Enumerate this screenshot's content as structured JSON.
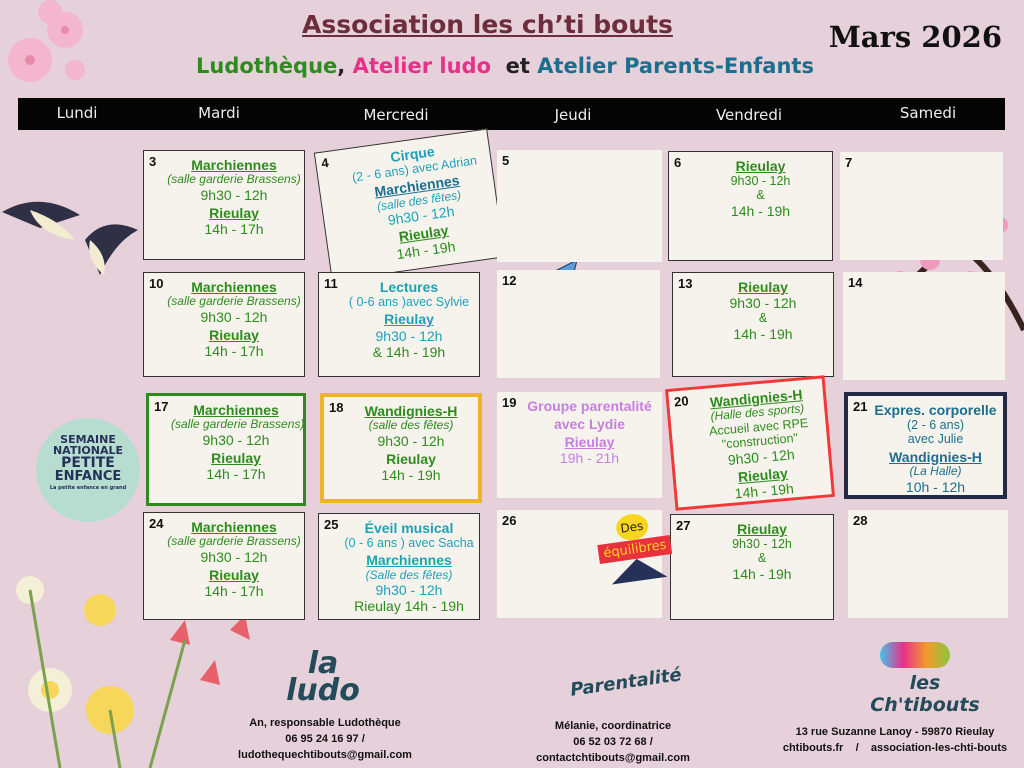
{
  "header": {
    "title": "Association les ch’ti bouts",
    "subtitle": [
      {
        "text": "Ludothèque",
        "color": "#2e8b1e"
      },
      {
        "text": ", ",
        "color": "#222"
      },
      {
        "text": "Atelier ludo",
        "color": "#e8308a"
      },
      {
        "text": "  et ",
        "color": "#222"
      },
      {
        "text": "Atelier Parents-Enfants",
        "color": "#1a6f8f"
      }
    ],
    "month": "Mars 2026"
  },
  "days": [
    "Lundi",
    "Mardi",
    "Mercredi",
    "Jeudi",
    "Vendredi",
    "Samedi"
  ],
  "colors": {
    "green": "#2e8b1e",
    "cyan": "#1ea0ba",
    "teal": "#1a6f8f",
    "violet": "#c77ee0",
    "background": "#e6d0d9"
  },
  "cells": [
    {
      "day": "3",
      "lines": [
        {
          "t": "Marchiennes",
          "c": "place",
          "col": "green"
        },
        {
          "t": "(salle garderie Brassens)",
          "c": "sub",
          "col": "green"
        },
        {
          "t": "9h30 - 12h",
          "c": "time",
          "col": "green"
        },
        {
          "t": "Rieulay",
          "c": "place",
          "col": "green"
        },
        {
          "t": "14h - 17h",
          "c": "time",
          "col": "green"
        }
      ]
    },
    {
      "day": "4",
      "lines": [
        {
          "t": "Cirque",
          "c": "act",
          "col": "cyan"
        },
        {
          "t": "(2 - 6 ans) avec Adrian",
          "c": "small",
          "col": "cyan"
        },
        {
          "t": "Marchiennes",
          "c": "place",
          "col": "teal"
        },
        {
          "t": "(salle des fêtes)",
          "c": "sub",
          "col": "cyan"
        },
        {
          "t": "9h30 - 12h",
          "c": "time",
          "col": "cyan"
        },
        {
          "t": "Rieulay",
          "c": "place",
          "col": "green"
        },
        {
          "t": "14h - 19h",
          "c": "time",
          "col": "green"
        }
      ]
    },
    {
      "day": "5",
      "lines": []
    },
    {
      "day": "6",
      "lines": [
        {
          "t": "Rieulay",
          "c": "place",
          "col": "green"
        },
        {
          "t": "9h30 - 12h",
          "c": "small",
          "col": "green"
        },
        {
          "t": "&",
          "c": "small",
          "col": "green"
        },
        {
          "t": "14h - 19h",
          "c": "time",
          "col": "green"
        }
      ]
    },
    {
      "day": "7",
      "lines": []
    },
    {
      "day": "10",
      "lines": [
        {
          "t": "Marchiennes",
          "c": "place",
          "col": "green"
        },
        {
          "t": "(salle garderie Brassens)",
          "c": "sub",
          "col": "green"
        },
        {
          "t": "9h30 - 12h",
          "c": "time",
          "col": "green"
        },
        {
          "t": "Rieulay",
          "c": "place",
          "col": "green"
        },
        {
          "t": "14h - 17h",
          "c": "time",
          "col": "green"
        }
      ]
    },
    {
      "day": "11",
      "lines": [
        {
          "t": "Lectures",
          "c": "act",
          "col": "cyan"
        },
        {
          "t": "( 0-6 ans )avec Sylvie",
          "c": "small",
          "col": "cyan"
        },
        {
          "t": "Rieulay",
          "c": "place",
          "col": "cyan"
        },
        {
          "t": "9h30 - 12h",
          "c": "time",
          "col": "cyan"
        },
        {
          "t": "&  14h - 19h",
          "c": "time",
          "col": "green"
        }
      ]
    },
    {
      "day": "12",
      "lines": []
    },
    {
      "day": "13",
      "lines": [
        {
          "t": "Rieulay",
          "c": "place",
          "col": "green"
        },
        {
          "t": "9h30 - 12h",
          "c": "time",
          "col": "green"
        },
        {
          "t": "&",
          "c": "small",
          "col": "green"
        },
        {
          "t": "14h - 19h",
          "c": "time",
          "col": "green"
        }
      ]
    },
    {
      "day": "14",
      "lines": []
    },
    {
      "day": "17",
      "lines": [
        {
          "t": "Marchiennes",
          "c": "place",
          "col": "green"
        },
        {
          "t": "(salle garderie Brassens)",
          "c": "sub",
          "col": "green"
        },
        {
          "t": "9h30 - 12h",
          "c": "time",
          "col": "green"
        },
        {
          "t": "Rieulay",
          "c": "place",
          "col": "green"
        },
        {
          "t": "14h - 17h",
          "c": "time",
          "col": "green"
        }
      ]
    },
    {
      "day": "18",
      "lines": [
        {
          "t": "Wandignies-H",
          "c": "place",
          "col": "green"
        },
        {
          "t": "(salle des fêtes)",
          "c": "sub",
          "col": "green"
        },
        {
          "t": "9h30 - 12h",
          "c": "time",
          "col": "green"
        },
        {
          "t": "Rieulay",
          "c": "act",
          "col": "green"
        },
        {
          "t": "14h - 19h",
          "c": "time",
          "col": "green"
        }
      ]
    },
    {
      "day": "19",
      "lines": [
        {
          "t": "Groupe parentalité",
          "c": "act",
          "col": "violet"
        },
        {
          "t": "avec Lydie",
          "c": "act",
          "col": "violet"
        },
        {
          "t": "Rieulay",
          "c": "place",
          "col": "violet"
        },
        {
          "t": "19h - 21h",
          "c": "time",
          "col": "violet"
        }
      ]
    },
    {
      "day": "20",
      "lines": [
        {
          "t": "Wandignies-H",
          "c": "place",
          "col": "green"
        },
        {
          "t": "(Halle des sports)",
          "c": "sub",
          "col": "green"
        },
        {
          "t": "Accueil avec RPE",
          "c": "small",
          "col": "green"
        },
        {
          "t": "\"construction\"",
          "c": "small",
          "col": "green"
        },
        {
          "t": "9h30 - 12h",
          "c": "time",
          "col": "green"
        },
        {
          "t": "Rieulay",
          "c": "place",
          "col": "green"
        },
        {
          "t": "14h - 19h",
          "c": "time",
          "col": "green"
        }
      ]
    },
    {
      "day": "21",
      "lines": [
        {
          "t": "Expres. corporelle",
          "c": "act",
          "col": "teal"
        },
        {
          "t": "(2 - 6 ans)",
          "c": "small",
          "col": "teal"
        },
        {
          "t": "avec Julie",
          "c": "small",
          "col": "teal"
        },
        {
          "t": "Wandignies-H",
          "c": "place",
          "col": "teal"
        },
        {
          "t": "(La Halle)",
          "c": "sub",
          "col": "teal"
        },
        {
          "t": "10h - 12h",
          "c": "time",
          "col": "teal"
        }
      ]
    },
    {
      "day": "24",
      "lines": [
        {
          "t": "Marchiennes",
          "c": "place",
          "col": "green"
        },
        {
          "t": "(salle garderie Brassens)",
          "c": "sub",
          "col": "green"
        },
        {
          "t": "9h30 - 12h",
          "c": "time",
          "col": "green"
        },
        {
          "t": "Rieulay",
          "c": "place",
          "col": "green"
        },
        {
          "t": "14h - 17h",
          "c": "time",
          "col": "green"
        }
      ]
    },
    {
      "day": "25",
      "lines": [
        {
          "t": "Éveil musical",
          "c": "act",
          "col": "cyan"
        },
        {
          "t": "(0 - 6 ans ) avec Sacha",
          "c": "small",
          "col": "cyan"
        },
        {
          "t": "Marchiennes",
          "c": "place",
          "col": "cyan"
        },
        {
          "t": "(Salle des fêtes)",
          "c": "sub",
          "col": "cyan"
        },
        {
          "t": "9h30 - 12h",
          "c": "time",
          "col": "cyan"
        },
        {
          "t": "Rieulay 14h - 19h",
          "c": "time",
          "col": "green"
        }
      ]
    },
    {
      "day": "26",
      "lines": []
    },
    {
      "day": "27",
      "lines": [
        {
          "t": "Rieulay",
          "c": "place",
          "col": "green"
        },
        {
          "t": "9h30 - 12h",
          "c": "small",
          "col": "green"
        },
        {
          "t": "&",
          "c": "small",
          "col": "green"
        },
        {
          "t": "14h - 19h",
          "c": "time",
          "col": "green"
        }
      ]
    },
    {
      "day": "28",
      "lines": []
    }
  ],
  "badges": {
    "semaine": [
      "SEMAINE",
      "NATIONALE",
      "PETITE",
      "ENFANCE",
      "La petite enfance en grand"
    ],
    "equilibres": [
      "Des",
      "équilibres"
    ]
  },
  "footer": {
    "ludo": {
      "logo": "la ludo",
      "lines": [
        "An, responsable Ludothèque",
        "06 95 24 16 97  /",
        "ludothequechtibouts@gmail.com"
      ]
    },
    "parentalite": {
      "logo": "Parentalité",
      "lines": [
        "Mélanie, coordinatrice",
        "06 52 03 72 68  /",
        "contactchtibouts@gmail.com"
      ]
    },
    "chtibouts": {
      "logo": "les Ch'tibouts",
      "lines": [
        "13 rue Suzanne Lanoy - 59870 Rieulay",
        "chtibouts.fr    /    association-les-chti-bouts"
      ]
    }
  }
}
